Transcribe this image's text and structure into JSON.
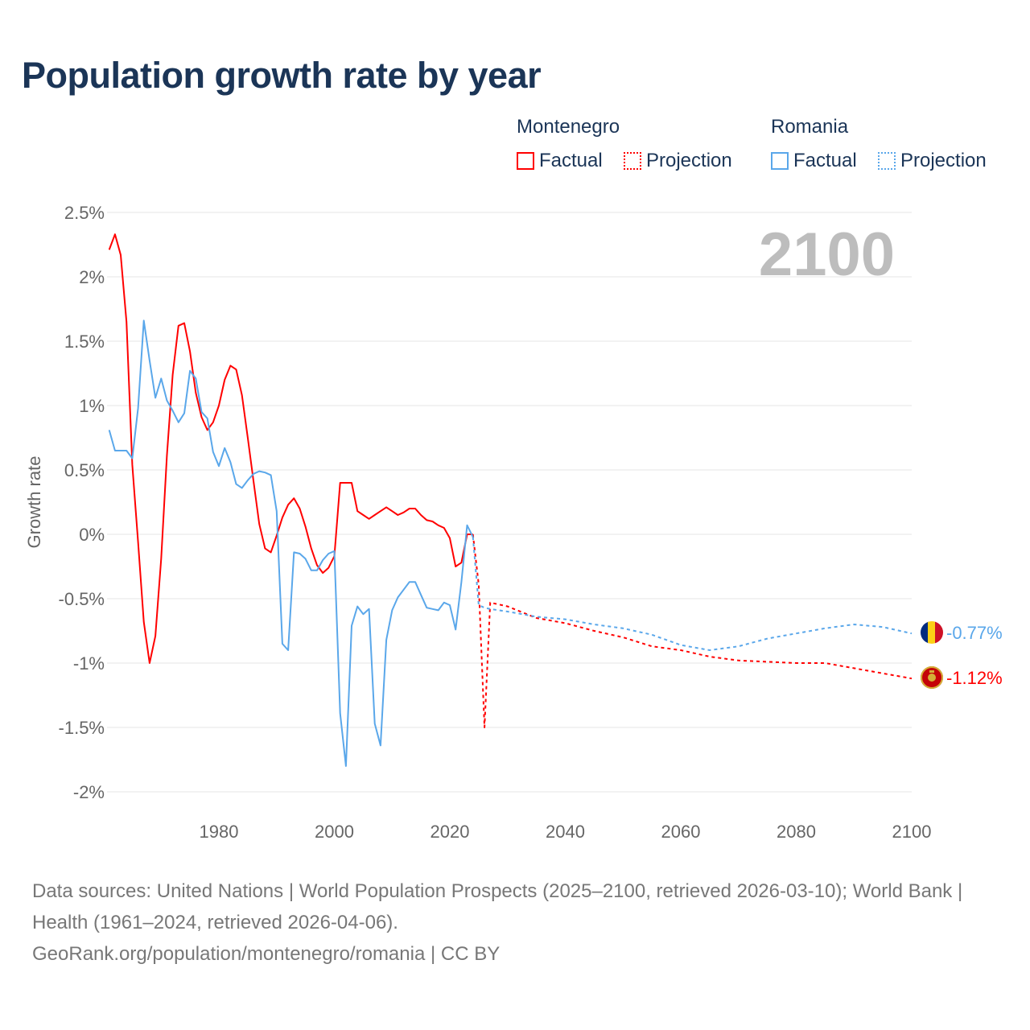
{
  "title": "Population growth rate by year",
  "legend": {
    "groups": [
      {
        "name": "Montenegro",
        "factual": "Factual",
        "projection": "Projection",
        "color": "#ff0000"
      },
      {
        "name": "Romania",
        "factual": "Factual",
        "projection": "Projection",
        "color": "#5aa7ea"
      }
    ]
  },
  "current_year_label": "2100",
  "end_labels": {
    "romania": "-0.77%",
    "montenegro": "-1.12%"
  },
  "footer": {
    "sources": "Data sources: United Nations | World Population Prospects (2025–2100, retrieved 2026-03-10); World Bank | Health (1961–2024, retrieved 2026-04-06).",
    "credit": "GeoRank.org/population/montenegro/romania | CC BY"
  },
  "chart_data": {
    "type": "line",
    "title": "Population growth rate by year",
    "xlabel": "",
    "ylabel": "Growth rate",
    "xlim": [
      1961,
      2100
    ],
    "ylim": [
      -2,
      2.5
    ],
    "x_ticks": [
      1980,
      2000,
      2020,
      2040,
      2060,
      2080,
      2100
    ],
    "y_ticks": [
      {
        "value": 2.5,
        "label": "2.5%"
      },
      {
        "value": 2,
        "label": "2%"
      },
      {
        "value": 1.5,
        "label": "1.5%"
      },
      {
        "value": 1,
        "label": "1%"
      },
      {
        "value": 0.5,
        "label": "0.5%"
      },
      {
        "value": 0,
        "label": "0%"
      },
      {
        "value": -0.5,
        "label": "-0.5%"
      },
      {
        "value": -1,
        "label": "-1%"
      },
      {
        "value": -1.5,
        "label": "-1.5%"
      },
      {
        "value": -2,
        "label": "-2%"
      }
    ],
    "grid": true,
    "legend_position": "top-right",
    "series": [
      {
        "name": "Montenegro Factual",
        "color": "#ff0000",
        "dashed": false,
        "x": [
          1961,
          1962,
          1963,
          1964,
          1965,
          1966,
          1967,
          1968,
          1969,
          1970,
          1971,
          1972,
          1973,
          1974,
          1975,
          1976,
          1977,
          1978,
          1979,
          1980,
          1981,
          1982,
          1983,
          1984,
          1985,
          1986,
          1987,
          1988,
          1989,
          1990,
          1991,
          1992,
          1993,
          1994,
          1995,
          1996,
          1997,
          1998,
          1999,
          2000,
          2001,
          2002,
          2003,
          2004,
          2005,
          2006,
          2007,
          2008,
          2009,
          2010,
          2011,
          2012,
          2013,
          2014,
          2015,
          2016,
          2017,
          2018,
          2019,
          2020,
          2021,
          2022,
          2023,
          2024
        ],
        "y": [
          2.21,
          2.33,
          2.17,
          1.65,
          0.54,
          -0.06,
          -0.68,
          -1.0,
          -0.79,
          -0.19,
          0.61,
          1.24,
          1.62,
          1.64,
          1.42,
          1.1,
          0.91,
          0.81,
          0.87,
          1.0,
          1.2,
          1.31,
          1.28,
          1.08,
          0.75,
          0.41,
          0.08,
          -0.11,
          -0.14,
          -0.01,
          0.13,
          0.23,
          0.28,
          0.2,
          0.06,
          -0.11,
          -0.24,
          -0.3,
          -0.26,
          -0.17,
          0.4,
          0.4,
          0.4,
          0.18,
          0.15,
          0.12,
          0.15,
          0.18,
          0.21,
          0.18,
          0.15,
          0.17,
          0.2,
          0.2,
          0.15,
          0.11,
          0.1,
          0.07,
          0.05,
          -0.03,
          -0.25,
          -0.22,
          0.0,
          0.0
        ]
      },
      {
        "name": "Montenegro Projection",
        "color": "#ff0000",
        "dashed": true,
        "x": [
          2024,
          2025,
          2026,
          2027,
          2030,
          2035,
          2040,
          2045,
          2050,
          2055,
          2060,
          2065,
          2070,
          2075,
          2080,
          2085,
          2090,
          2095,
          2100
        ],
        "y": [
          0.0,
          -0.39,
          -1.5,
          -0.53,
          -0.56,
          -0.65,
          -0.69,
          -0.75,
          -0.8,
          -0.87,
          -0.9,
          -0.95,
          -0.98,
          -0.99,
          -1.0,
          -1.0,
          -1.04,
          -1.08,
          -1.12
        ]
      },
      {
        "name": "Romania Factual",
        "color": "#5aa7ea",
        "dashed": false,
        "x": [
          1961,
          1962,
          1963,
          1964,
          1965,
          1966,
          1967,
          1968,
          1969,
          1970,
          1971,
          1972,
          1973,
          1974,
          1975,
          1976,
          1977,
          1978,
          1979,
          1980,
          1981,
          1982,
          1983,
          1984,
          1985,
          1986,
          1987,
          1988,
          1989,
          1990,
          1991,
          1992,
          1993,
          1994,
          1995,
          1996,
          1997,
          1998,
          1999,
          2000,
          2001,
          2002,
          2003,
          2004,
          2005,
          2006,
          2007,
          2008,
          2009,
          2010,
          2011,
          2012,
          2013,
          2014,
          2015,
          2016,
          2017,
          2018,
          2019,
          2020,
          2021,
          2022,
          2023,
          2024
        ],
        "y": [
          0.81,
          0.65,
          0.65,
          0.65,
          0.59,
          0.98,
          1.66,
          1.35,
          1.06,
          1.21,
          1.04,
          0.96,
          0.87,
          0.94,
          1.27,
          1.21,
          0.95,
          0.9,
          0.64,
          0.53,
          0.67,
          0.56,
          0.39,
          0.36,
          0.42,
          0.47,
          0.49,
          0.48,
          0.46,
          0.18,
          -0.85,
          -0.9,
          -0.14,
          -0.15,
          -0.19,
          -0.28,
          -0.28,
          -0.2,
          -0.15,
          -0.13,
          -1.39,
          -1.8,
          -0.71,
          -0.56,
          -0.62,
          -0.58,
          -1.47,
          -1.64,
          -0.82,
          -0.59,
          -0.49,
          -0.43,
          -0.37,
          -0.37,
          -0.47,
          -0.57,
          -0.58,
          -0.59,
          -0.53,
          -0.55,
          -0.74,
          -0.37,
          0.07,
          -0.02
        ]
      },
      {
        "name": "Romania Projection",
        "color": "#5aa7ea",
        "dashed": true,
        "x": [
          2024,
          2025,
          2026,
          2027,
          2030,
          2035,
          2040,
          2045,
          2050,
          2055,
          2060,
          2065,
          2070,
          2075,
          2080,
          2085,
          2090,
          2095,
          2100
        ],
        "y": [
          -0.02,
          -0.55,
          -0.57,
          -0.58,
          -0.6,
          -0.64,
          -0.66,
          -0.7,
          -0.73,
          -0.78,
          -0.86,
          -0.9,
          -0.87,
          -0.81,
          -0.77,
          -0.73,
          -0.7,
          -0.72,
          -0.77
        ]
      }
    ]
  }
}
